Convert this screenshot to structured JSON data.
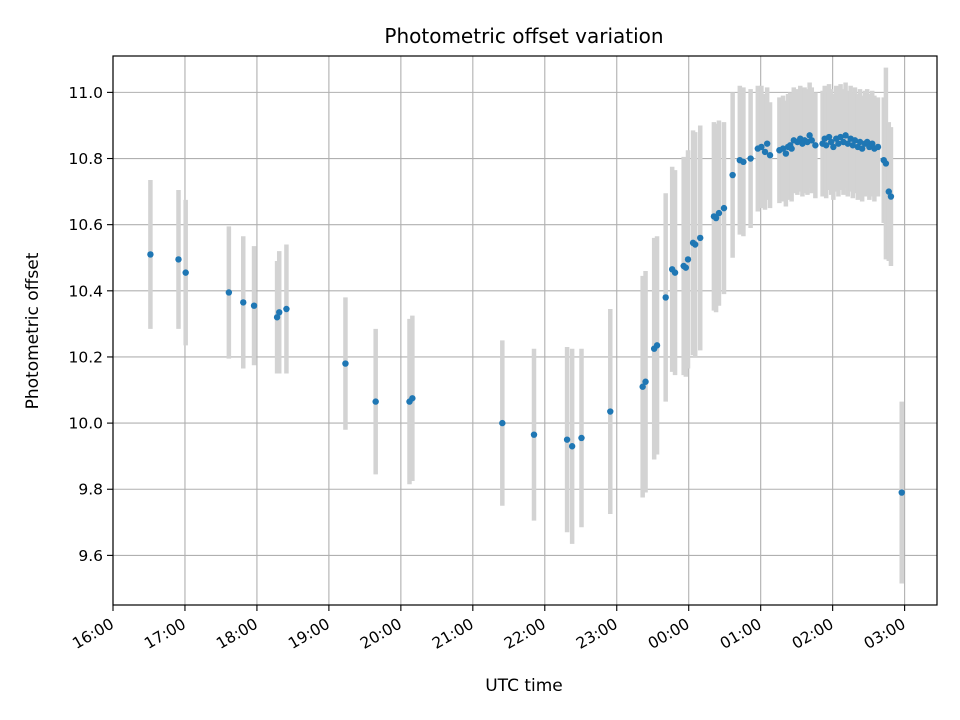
{
  "chart_data": {
    "type": "scatter",
    "title": "Photometric offset variation",
    "xlabel": "UTC time",
    "ylabel": "Photometric offset",
    "x_tick_labels": [
      "16:00",
      "17:00",
      "18:00",
      "19:00",
      "20:00",
      "21:00",
      "22:00",
      "23:00",
      "00:00",
      "01:00",
      "02:00",
      "03:00"
    ],
    "y_tick_labels": [
      "9.6",
      "9.8",
      "10.0",
      "10.2",
      "10.4",
      "10.6",
      "10.8",
      "11.0"
    ],
    "x_unit": "hours after 16:00 UTC",
    "xlim": [
      0,
      11.45
    ],
    "ylim": [
      9.45,
      11.11
    ],
    "grid": true,
    "colors": {
      "point": "#1f77b4",
      "errorbar": "#d3d3d3",
      "grid": "#b0b0b0"
    },
    "series": [
      {
        "points": [
          [
            0.52,
            10.51,
            0.225
          ],
          [
            0.91,
            10.495,
            0.21
          ],
          [
            1.01,
            10.455,
            0.22
          ],
          [
            1.61,
            10.395,
            0.2
          ],
          [
            1.81,
            10.365,
            0.2
          ],
          [
            1.96,
            10.355,
            0.18
          ],
          [
            2.28,
            10.32,
            0.17
          ],
          [
            2.31,
            10.335,
            0.185
          ],
          [
            2.41,
            10.345,
            0.195
          ],
          [
            3.23,
            10.18,
            0.2
          ],
          [
            3.65,
            10.065,
            0.22
          ],
          [
            4.12,
            10.065,
            0.25
          ],
          [
            4.16,
            10.075,
            0.25
          ],
          [
            5.41,
            10.0,
            0.25
          ],
          [
            5.85,
            9.965,
            0.26
          ],
          [
            6.31,
            9.95,
            0.28
          ],
          [
            6.38,
            9.93,
            0.295
          ],
          [
            6.51,
            9.955,
            0.27
          ],
          [
            6.91,
            10.035,
            0.31
          ],
          [
            7.36,
            10.11,
            0.335
          ],
          [
            7.4,
            10.125,
            0.335
          ],
          [
            7.52,
            10.225,
            0.335
          ],
          [
            7.56,
            10.235,
            0.33
          ],
          [
            7.68,
            10.38,
            0.315
          ],
          [
            7.77,
            10.465,
            0.31
          ],
          [
            7.81,
            10.455,
            0.31
          ],
          [
            7.93,
            10.475,
            0.33
          ],
          [
            7.96,
            10.47,
            0.33
          ],
          [
            7.99,
            10.495,
            0.33
          ],
          [
            8.06,
            10.545,
            0.34
          ],
          [
            8.09,
            10.54,
            0.34
          ],
          [
            8.16,
            10.56,
            0.34
          ],
          [
            8.35,
            10.625,
            0.285
          ],
          [
            8.38,
            10.62,
            0.285
          ],
          [
            8.42,
            10.635,
            0.28
          ],
          [
            8.49,
            10.65,
            0.26
          ],
          [
            8.61,
            10.75,
            0.25
          ],
          [
            8.71,
            10.795,
            0.225
          ],
          [
            8.76,
            10.79,
            0.225
          ],
          [
            8.86,
            10.8,
            0.21
          ],
          [
            8.96,
            10.83,
            0.19
          ],
          [
            9.01,
            10.835,
            0.185
          ],
          [
            9.06,
            10.82,
            0.175
          ],
          [
            9.09,
            10.845,
            0.17
          ],
          [
            9.13,
            10.81,
            0.16
          ],
          [
            9.26,
            10.825,
            0.16
          ],
          [
            9.31,
            10.83,
            0.16
          ],
          [
            9.35,
            10.815,
            0.16
          ],
          [
            9.38,
            10.835,
            0.16
          ],
          [
            9.41,
            10.84,
            0.16
          ],
          [
            9.43,
            10.83,
            0.16
          ],
          [
            9.46,
            10.855,
            0.16
          ],
          [
            9.51,
            10.85,
            0.16
          ],
          [
            9.55,
            10.86,
            0.16
          ],
          [
            9.58,
            10.845,
            0.16
          ],
          [
            9.61,
            10.855,
            0.16
          ],
          [
            9.65,
            10.85,
            0.16
          ],
          [
            9.68,
            10.87,
            0.16
          ],
          [
            9.71,
            10.855,
            0.16
          ],
          [
            9.76,
            10.84,
            0.16
          ],
          [
            9.86,
            10.845,
            0.16
          ],
          [
            9.89,
            10.86,
            0.16
          ],
          [
            9.91,
            10.84,
            0.16
          ],
          [
            9.95,
            10.865,
            0.16
          ],
          [
            9.98,
            10.85,
            0.16
          ],
          [
            10.01,
            10.835,
            0.16
          ],
          [
            10.05,
            10.86,
            0.16
          ],
          [
            10.08,
            10.845,
            0.16
          ],
          [
            10.11,
            10.865,
            0.16
          ],
          [
            10.15,
            10.85,
            0.16
          ],
          [
            10.18,
            10.87,
            0.16
          ],
          [
            10.21,
            10.845,
            0.16
          ],
          [
            10.25,
            10.86,
            0.16
          ],
          [
            10.28,
            10.84,
            0.16
          ],
          [
            10.31,
            10.855,
            0.16
          ],
          [
            10.35,
            10.835,
            0.16
          ],
          [
            10.38,
            10.85,
            0.16
          ],
          [
            10.41,
            10.83,
            0.16
          ],
          [
            10.45,
            10.845,
            0.16
          ],
          [
            10.48,
            10.85,
            0.16
          ],
          [
            10.51,
            10.835,
            0.16
          ],
          [
            10.55,
            10.845,
            0.16
          ],
          [
            10.58,
            10.83,
            0.16
          ],
          [
            10.63,
            10.835,
            0.15
          ],
          [
            10.71,
            10.795,
            0.19
          ],
          [
            10.74,
            10.785,
            0.29
          ],
          [
            10.78,
            10.7,
            0.21
          ],
          [
            10.81,
            10.685,
            0.21
          ],
          [
            10.96,
            9.79,
            0.275
          ]
        ]
      }
    ]
  }
}
